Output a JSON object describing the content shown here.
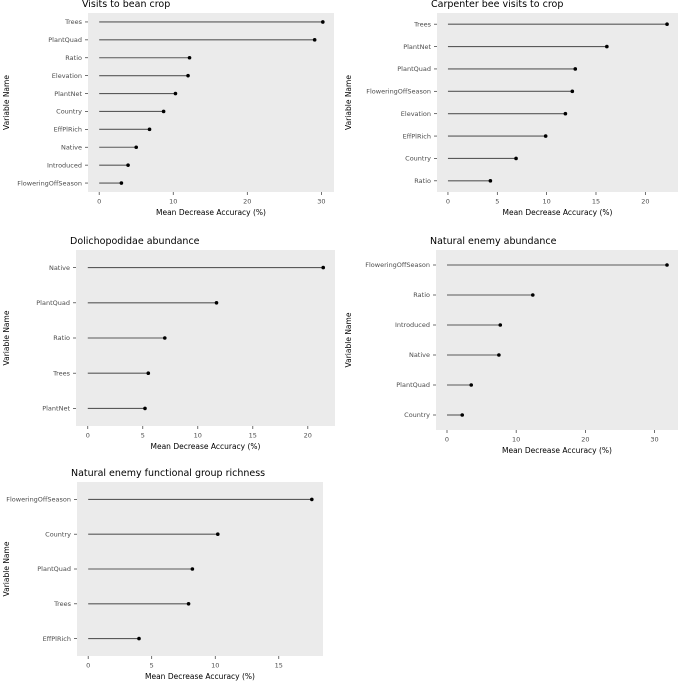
{
  "figure": {
    "shared_xlabel": "Mean Decrease Accuracy (%)",
    "shared_ylabel": "Variable Name",
    "colors": {
      "panel_bg": "#ebebeb",
      "segment": "#595959",
      "point": "#000000",
      "tick_text": "#4d4d4d",
      "axis_text": "#000000",
      "title_text": "#000000"
    }
  },
  "chart_data": [
    {
      "type": "lollipop",
      "orientation": "horizontal",
      "title": "Visits to bean crop",
      "categories": [
        "Trees",
        "PlantQuad",
        "Ratio",
        "Elevation",
        "PlantNet",
        "Country",
        "EffPlRich",
        "Native",
        "Introduced",
        "FloweringOffSeason"
      ],
      "values": [
        30.2,
        29.1,
        12.2,
        12.0,
        10.3,
        8.7,
        6.8,
        5.0,
        3.9,
        3.0
      ],
      "xlabel": "Mean Decrease Accuracy (%)",
      "ylabel": "Variable Name",
      "x_ticks": [
        0,
        10,
        20,
        30
      ],
      "xlim": [
        0,
        30.2
      ],
      "grid": false,
      "legend": "none"
    },
    {
      "type": "lollipop",
      "orientation": "horizontal",
      "title": "Carpenter bee visits to crop",
      "categories": [
        "Trees",
        "PlantNet",
        "PlantQuad",
        "FloweringOffSeason",
        "Elevation",
        "EffPlRich",
        "Country",
        "Ratio"
      ],
      "values": [
        22.2,
        16.1,
        12.9,
        12.6,
        11.9,
        9.9,
        6.9,
        4.3
      ],
      "xlabel": "Mean Decrease Accuracy (%)",
      "ylabel": "Variable Name",
      "x_ticks": [
        0,
        5,
        10,
        15,
        20
      ],
      "xlim": [
        0,
        22.2
      ],
      "grid": false,
      "legend": "none"
    },
    {
      "type": "lollipop",
      "orientation": "horizontal",
      "title": "Dolichopodidae abundance",
      "categories": [
        "Native",
        "PlantQuad",
        "Ratio",
        "Trees",
        "PlantNet"
      ],
      "values": [
        21.4,
        11.7,
        7.0,
        5.5,
        5.2
      ],
      "xlabel": "Mean Decrease Accuracy (%)",
      "ylabel": "Variable Name",
      "x_ticks": [
        0,
        5,
        10,
        15,
        20
      ],
      "xlim": [
        0,
        21.4
      ],
      "grid": false,
      "legend": "none"
    },
    {
      "type": "lollipop",
      "orientation": "horizontal",
      "title": "Natural enemy abundance",
      "categories": [
        "FloweringOffSeason",
        "Ratio",
        "Introduced",
        "Native",
        "PlantQuad",
        "Country"
      ],
      "values": [
        31.8,
        12.4,
        7.7,
        7.5,
        3.5,
        2.2
      ],
      "xlabel": "Mean Decrease Accuracy (%)",
      "ylabel": "Variable Name",
      "x_ticks": [
        0,
        10,
        20,
        30
      ],
      "xlim": [
        0,
        31.8
      ],
      "grid": false,
      "legend": "none"
    },
    {
      "type": "lollipop",
      "orientation": "horizontal",
      "title": "Natural enemy functional group richness",
      "categories": [
        "FloweringOffSeason",
        "Country",
        "PlantQuad",
        "Trees",
        "EffPlRich"
      ],
      "values": [
        17.6,
        10.2,
        8.2,
        7.9,
        4.0
      ],
      "xlabel": "Mean Decrease Accuracy (%)",
      "ylabel": "Variable Name",
      "x_ticks": [
        0,
        5,
        10,
        15
      ],
      "xlim": [
        0,
        17.6
      ],
      "grid": false,
      "legend": "none"
    }
  ]
}
